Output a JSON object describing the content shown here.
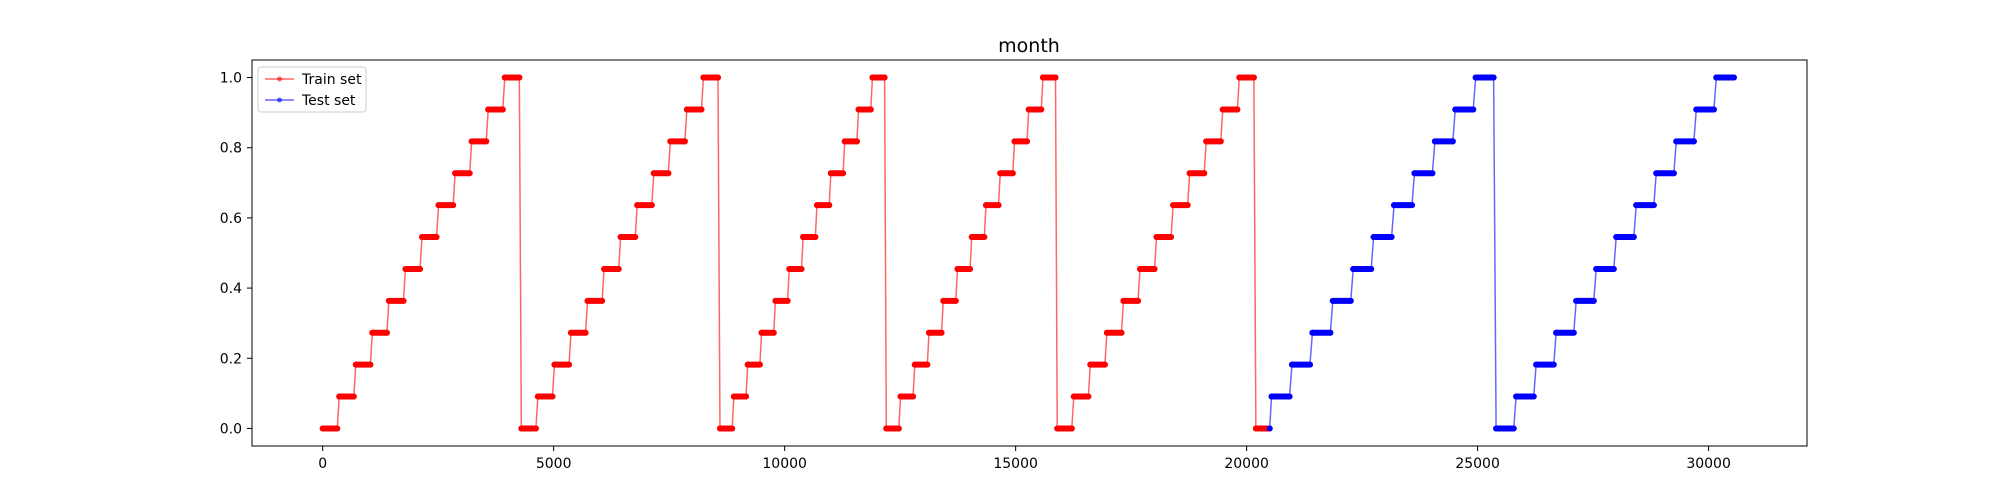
{
  "chart_data": {
    "type": "line",
    "title": "month",
    "xlabel": "",
    "ylabel": "",
    "xlim": [
      -1530,
      32130
    ],
    "ylim": [
      -0.05,
      1.05
    ],
    "xticks": [
      0,
      5000,
      10000,
      15000,
      20000,
      25000,
      30000
    ],
    "yticks": [
      0.0,
      0.2,
      0.4,
      0.6,
      0.8,
      1.0
    ],
    "ytick_labels": [
      "0.0",
      "0.2",
      "0.4",
      "0.6",
      "0.8",
      "1.0"
    ],
    "grid": false,
    "legend": {
      "position": "upper-left"
    },
    "pattern": "each month value 0/11 … 11/11 held as a plateau, then reset to 0 at a new year",
    "series": [
      {
        "name": "Train set",
        "color": "#ff0000",
        "years": [
          {
            "x_start": 0,
            "x_end": 4300,
            "months": 12
          },
          {
            "x_start": 4300,
            "x_end": 8600,
            "months": 12
          },
          {
            "x_start": 8600,
            "x_end": 12200,
            "months": 12
          },
          {
            "x_start": 12200,
            "x_end": 15900,
            "months": 12
          },
          {
            "x_start": 15900,
            "x_end": 20200,
            "months": 12
          },
          {
            "x_start": 20200,
            "x_end": 20540,
            "months": 1
          }
        ]
      },
      {
        "name": "Test set",
        "color": "#0000ff",
        "years": [
          {
            "x_start": 20200,
            "x_end": 20540,
            "months": 1,
            "start_month": 0,
            "only_last_point": true
          },
          {
            "x_start": 20540,
            "x_end": 25400,
            "months": 11,
            "start_month": 1
          },
          {
            "x_start": 25400,
            "x_end": 30600,
            "months": 12,
            "start_month": 0
          }
        ]
      }
    ]
  }
}
